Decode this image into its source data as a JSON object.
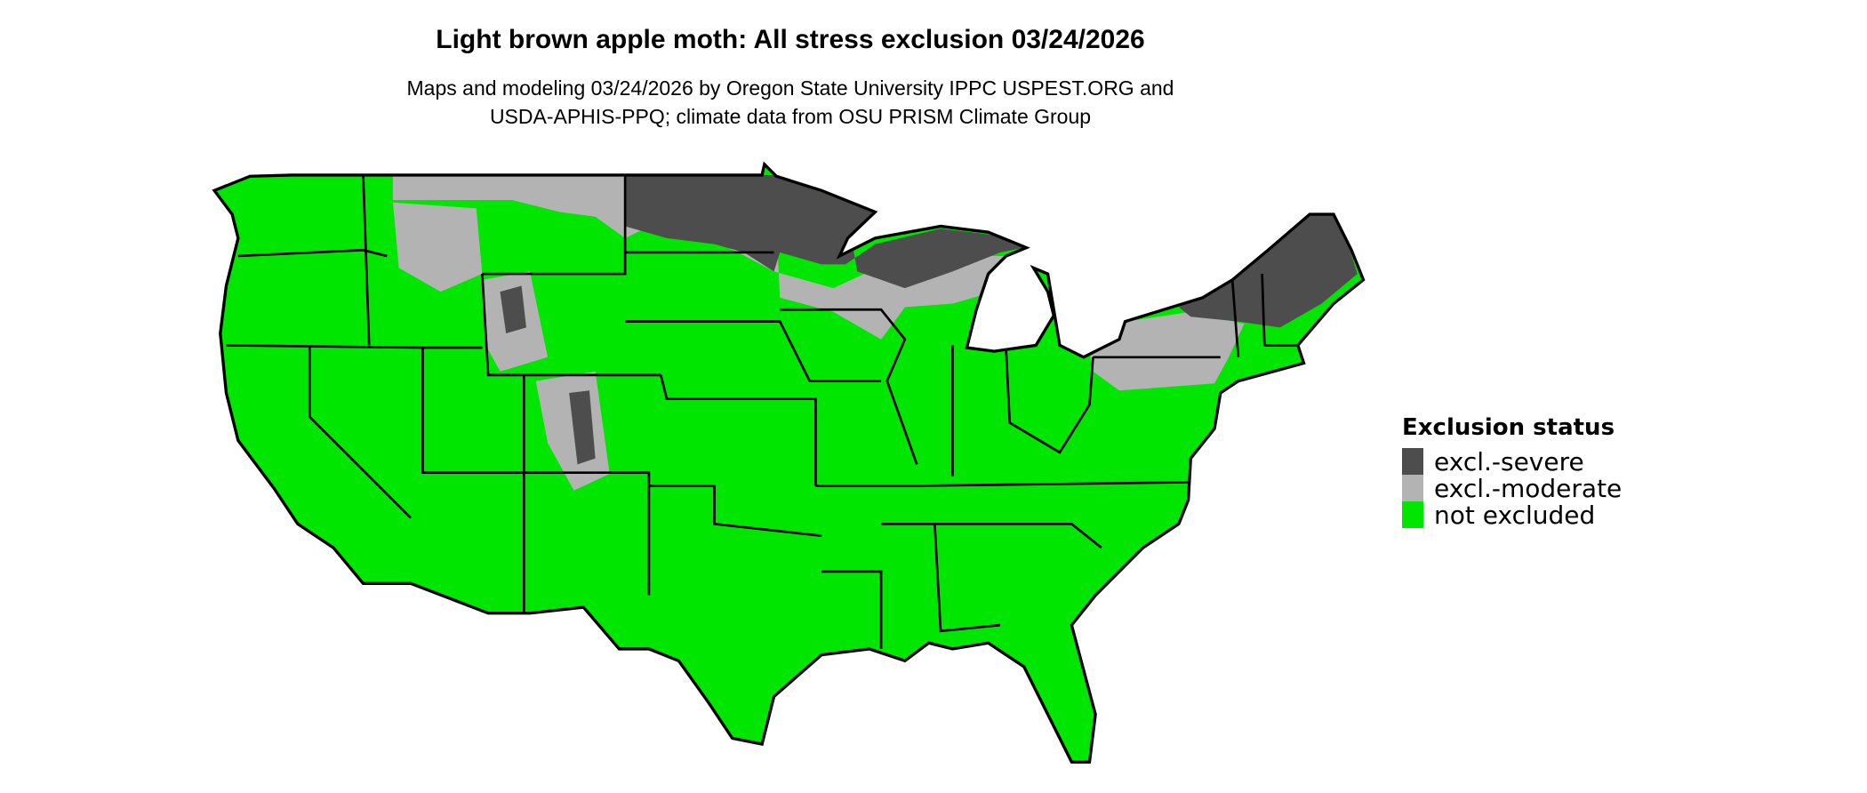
{
  "title": "Light brown apple moth: All stress exclusion 03/24/2026",
  "subtitle_lines": [
    "Maps and modeling 03/24/2026 by Oregon State University IPPC USPEST.ORG and",
    "USDA-APHIS-PPQ; climate data from OSU PRISM Climate Group"
  ],
  "legend": {
    "title": "Exclusion status",
    "items": [
      {
        "label": "excl.-severe",
        "color": "#4d4d4d"
      },
      {
        "label": "excl.-moderate",
        "color": "#b3b3b3"
      },
      {
        "label": "not excluded",
        "color": "#00e600"
      }
    ]
  },
  "map": {
    "region": "Contiguous United States",
    "border_color": "#000000"
  }
}
